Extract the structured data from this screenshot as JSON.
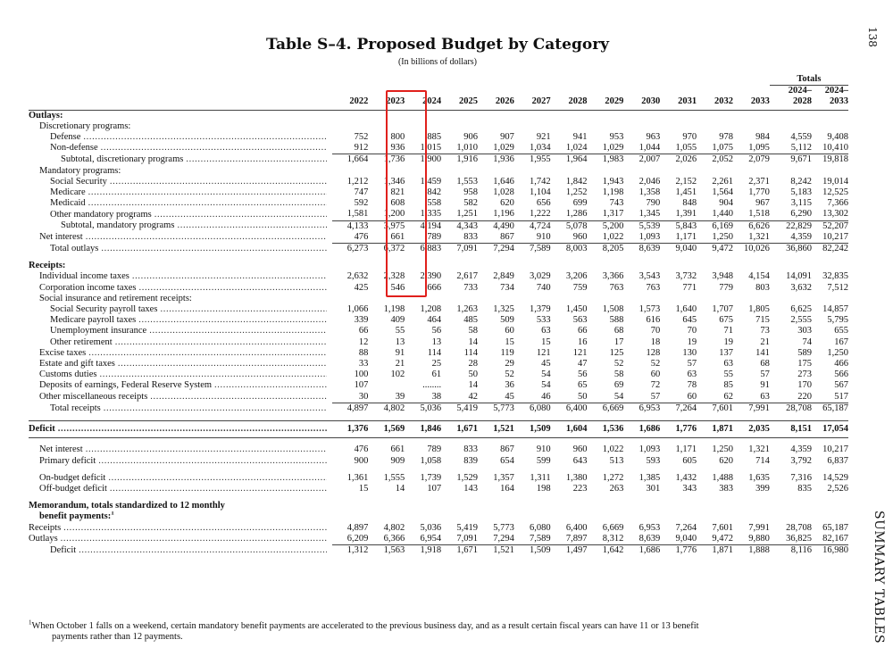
{
  "page_number": "138",
  "side_label": "SUMMARY TABLES",
  "title": "Table S–4.  Proposed Budget by Category",
  "subtitle": "(In billions of dollars)",
  "header": {
    "totals_label": "Totals",
    "years": [
      "2022",
      "2023",
      "2024",
      "2025",
      "2026",
      "2027",
      "2028",
      "2029",
      "2030",
      "2031",
      "2032",
      "2033"
    ],
    "total_cols": [
      [
        "2024–",
        "2028"
      ],
      [
        "2024–",
        "2033"
      ]
    ]
  },
  "rows": [
    {
      "type": "section",
      "label": "Outlays:"
    },
    {
      "type": "sub",
      "indent": 1,
      "label": "Discretionary programs:"
    },
    {
      "type": "data",
      "indent": 2,
      "label": "Defense",
      "values": [
        "752",
        "800",
        "885",
        "906",
        "907",
        "921",
        "941",
        "953",
        "963",
        "970",
        "978",
        "984",
        "4,559",
        "9,408"
      ]
    },
    {
      "type": "data",
      "indent": 2,
      "label": "Non-defense",
      "values": [
        "912",
        "936",
        "1,015",
        "1,010",
        "1,029",
        "1,034",
        "1,024",
        "1,029",
        "1,044",
        "1,055",
        "1,075",
        "1,095",
        "5,112",
        "10,410"
      ]
    },
    {
      "type": "data",
      "indent": 3,
      "rule": true,
      "label": "Subtotal, discretionary programs",
      "values": [
        "1,664",
        "1,736",
        "1,900",
        "1,916",
        "1,936",
        "1,955",
        "1,964",
        "1,983",
        "2,007",
        "2,026",
        "2,052",
        "2,079",
        "9,671",
        "19,818"
      ]
    },
    {
      "type": "sub",
      "indent": 1,
      "label": "Mandatory programs:"
    },
    {
      "type": "data",
      "indent": 2,
      "label": "Social Security",
      "values": [
        "1,212",
        "1,346",
        "1,459",
        "1,553",
        "1,646",
        "1,742",
        "1,842",
        "1,943",
        "2,046",
        "2,152",
        "2,261",
        "2,371",
        "8,242",
        "19,014"
      ]
    },
    {
      "type": "data",
      "indent": 2,
      "label": "Medicare",
      "values": [
        "747",
        "821",
        "842",
        "958",
        "1,028",
        "1,104",
        "1,252",
        "1,198",
        "1,358",
        "1,451",
        "1,564",
        "1,770",
        "5,183",
        "12,525"
      ]
    },
    {
      "type": "data",
      "indent": 2,
      "label": "Medicaid",
      "values": [
        "592",
        "608",
        "558",
        "582",
        "620",
        "656",
        "699",
        "743",
        "790",
        "848",
        "904",
        "967",
        "3,115",
        "7,366"
      ]
    },
    {
      "type": "data",
      "indent": 2,
      "label": "Other mandatory programs",
      "values": [
        "1,581",
        "1,200",
        "1,335",
        "1,251",
        "1,196",
        "1,222",
        "1,286",
        "1,317",
        "1,345",
        "1,391",
        "1,440",
        "1,518",
        "6,290",
        "13,302"
      ]
    },
    {
      "type": "data",
      "indent": 3,
      "rule": true,
      "label": "Subtotal, mandatory programs",
      "values": [
        "4,133",
        "3,975",
        "4,194",
        "4,343",
        "4,490",
        "4,724",
        "5,078",
        "5,200",
        "5,539",
        "5,843",
        "6,169",
        "6,626",
        "22,829",
        "52,207"
      ]
    },
    {
      "type": "data",
      "indent": 1,
      "label": "Net interest",
      "values": [
        "476",
        "661",
        "789",
        "833",
        "867",
        "910",
        "960",
        "1,022",
        "1,093",
        "1,171",
        "1,250",
        "1,321",
        "4,359",
        "10,217"
      ]
    },
    {
      "type": "data",
      "indent": 2,
      "rule": true,
      "label": "Total outlays",
      "values": [
        "6,273",
        "6,372",
        "6,883",
        "7,091",
        "7,294",
        "7,589",
        "8,003",
        "8,205",
        "8,639",
        "9,040",
        "9,472",
        "10,026",
        "36,860",
        "82,242"
      ]
    },
    {
      "type": "gap"
    },
    {
      "type": "section",
      "label": "Receipts:"
    },
    {
      "type": "data",
      "indent": 1,
      "label": "Individual income taxes",
      "values": [
        "2,632",
        "2,328",
        "2,390",
        "2,617",
        "2,849",
        "3,029",
        "3,206",
        "3,366",
        "3,543",
        "3,732",
        "3,948",
        "4,154",
        "14,091",
        "32,835"
      ]
    },
    {
      "type": "data",
      "indent": 1,
      "label": "Corporation income taxes",
      "values": [
        "425",
        "546",
        "666",
        "733",
        "734",
        "740",
        "759",
        "763",
        "763",
        "771",
        "779",
        "803",
        "3,632",
        "7,512"
      ]
    },
    {
      "type": "sub",
      "indent": 1,
      "label": "Social insurance and retirement receipts:"
    },
    {
      "type": "data",
      "indent": 2,
      "label": "Social Security payroll taxes",
      "values": [
        "1,066",
        "1,198",
        "1,208",
        "1,263",
        "1,325",
        "1,379",
        "1,450",
        "1,508",
        "1,573",
        "1,640",
        "1,707",
        "1,805",
        "6,625",
        "14,857"
      ]
    },
    {
      "type": "data",
      "indent": 2,
      "label": "Medicare payroll taxes",
      "values": [
        "339",
        "409",
        "464",
        "485",
        "509",
        "533",
        "563",
        "588",
        "616",
        "645",
        "675",
        "715",
        "2,555",
        "5,795"
      ]
    },
    {
      "type": "data",
      "indent": 2,
      "label": "Unemployment insurance",
      "values": [
        "66",
        "55",
        "56",
        "58",
        "60",
        "63",
        "66",
        "68",
        "70",
        "70",
        "71",
        "73",
        "303",
        "655"
      ]
    },
    {
      "type": "data",
      "indent": 2,
      "label": "Other retirement",
      "values": [
        "12",
        "13",
        "13",
        "14",
        "15",
        "15",
        "16",
        "17",
        "18",
        "19",
        "19",
        "21",
        "74",
        "167"
      ]
    },
    {
      "type": "data",
      "indent": 1,
      "label": "Excise taxes",
      "values": [
        "88",
        "91",
        "114",
        "114",
        "119",
        "121",
        "121",
        "125",
        "128",
        "130",
        "137",
        "141",
        "589",
        "1,250"
      ]
    },
    {
      "type": "data",
      "indent": 1,
      "label": "Estate and gift taxes",
      "values": [
        "33",
        "21",
        "25",
        "28",
        "29",
        "45",
        "47",
        "52",
        "52",
        "57",
        "63",
        "68",
        "175",
        "466"
      ]
    },
    {
      "type": "data",
      "indent": 1,
      "label": "Customs duties",
      "values": [
        "100",
        "102",
        "61",
        "50",
        "52",
        "54",
        "56",
        "58",
        "60",
        "63",
        "55",
        "57",
        "273",
        "566"
      ]
    },
    {
      "type": "data",
      "indent": 1,
      "label": "Deposits of earnings, Federal Reserve System",
      "values": [
        "107",
        "",
        "........",
        "14",
        "36",
        "54",
        "65",
        "69",
        "72",
        "78",
        "85",
        "91",
        "170",
        "567"
      ]
    },
    {
      "type": "data",
      "indent": 1,
      "label": "Other miscellaneous receipts",
      "values": [
        "30",
        "39",
        "38",
        "42",
        "45",
        "46",
        "50",
        "54",
        "57",
        "60",
        "62",
        "63",
        "220",
        "517"
      ]
    },
    {
      "type": "data",
      "indent": 2,
      "rule": true,
      "label": "Total receipts",
      "values": [
        "4,897",
        "4,802",
        "5,036",
        "5,419",
        "5,773",
        "6,080",
        "6,400",
        "6,669",
        "6,953",
        "7,264",
        "7,601",
        "7,991",
        "28,708",
        "65,187"
      ]
    },
    {
      "type": "gap"
    },
    {
      "type": "deficit",
      "label": "Deficit",
      "values": [
        "1,376",
        "1,569",
        "1,846",
        "1,671",
        "1,521",
        "1,509",
        "1,604",
        "1,536",
        "1,686",
        "1,776",
        "1,871",
        "2,035",
        "8,151",
        "17,054"
      ]
    },
    {
      "type": "gap"
    },
    {
      "type": "data",
      "indent": 1,
      "label": "Net interest",
      "values": [
        "476",
        "661",
        "789",
        "833",
        "867",
        "910",
        "960",
        "1,022",
        "1,093",
        "1,171",
        "1,250",
        "1,321",
        "4,359",
        "10,217"
      ]
    },
    {
      "type": "data",
      "indent": 1,
      "label": "Primary deficit",
      "values": [
        "900",
        "909",
        "1,058",
        "839",
        "654",
        "599",
        "643",
        "513",
        "593",
        "605",
        "620",
        "714",
        "3,792",
        "6,837"
      ]
    },
    {
      "type": "gap"
    },
    {
      "type": "data",
      "indent": 1,
      "label": "On-budget deficit",
      "values": [
        "1,361",
        "1,555",
        "1,739",
        "1,529",
        "1,357",
        "1,311",
        "1,380",
        "1,272",
        "1,385",
        "1,432",
        "1,488",
        "1,635",
        "7,316",
        "14,529"
      ]
    },
    {
      "type": "data",
      "indent": 1,
      "label": "Off-budget deficit",
      "values": [
        "15",
        "14",
        "107",
        "143",
        "164",
        "198",
        "223",
        "263",
        "301",
        "343",
        "383",
        "399",
        "835",
        "2,526"
      ]
    },
    {
      "type": "gap"
    },
    {
      "type": "section",
      "label": "Memorandum, totals standardized to 12 monthly"
    },
    {
      "type": "section",
      "indent": 1,
      "label": "benefit payments:",
      "sup": "1"
    },
    {
      "type": "data",
      "indent": 0,
      "label": "Receipts",
      "values": [
        "4,897",
        "4,802",
        "5,036",
        "5,419",
        "5,773",
        "6,080",
        "6,400",
        "6,669",
        "6,953",
        "7,264",
        "7,601",
        "7,991",
        "28,708",
        "65,187"
      ]
    },
    {
      "type": "data",
      "indent": 0,
      "label": "Outlays",
      "values": [
        "6,209",
        "6,366",
        "6,954",
        "7,091",
        "7,294",
        "7,589",
        "7,897",
        "8,312",
        "8,639",
        "9,040",
        "9,472",
        "9,880",
        "36,825",
        "82,167"
      ]
    },
    {
      "type": "data",
      "indent": 2,
      "rule": true,
      "label": "Deficit",
      "values": [
        "1,312",
        "1,563",
        "1,918",
        "1,671",
        "1,521",
        "1,509",
        "1,497",
        "1,642",
        "1,686",
        "1,776",
        "1,871",
        "1,888",
        "8,116",
        "16,980"
      ]
    }
  ],
  "footnote": {
    "marker": "1",
    "line1": "When October 1 falls on a weekend, certain mandatory benefit payments are accelerated to the previous business day, and as a result certain fiscal years can have 11 or 13 benefit",
    "line2": "payments rather than 12 payments."
  },
  "highlight": {
    "column": "2024",
    "color": "#e0201c"
  }
}
